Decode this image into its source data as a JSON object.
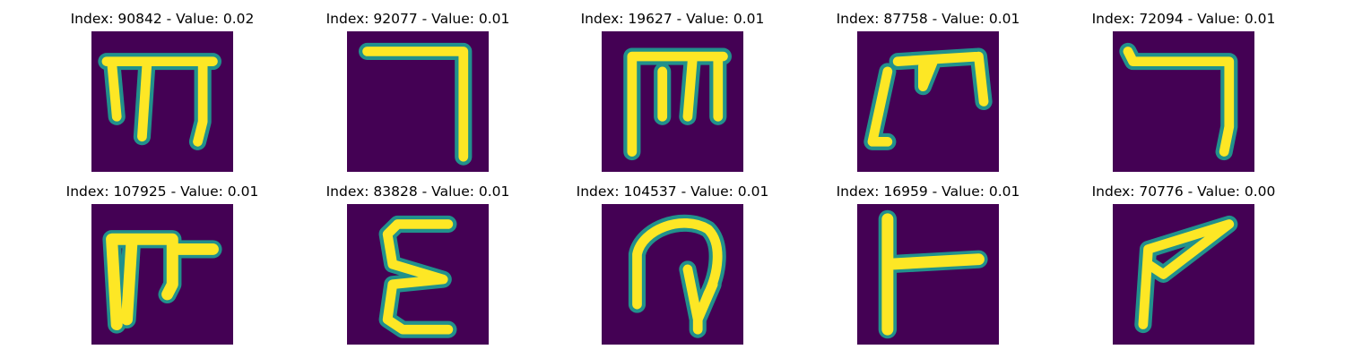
{
  "figure": {
    "colormap": "viridis",
    "colors": {
      "background": "#440154",
      "stroke_edge": "#21918c",
      "stroke_core": "#fde725"
    },
    "panels": [
      {
        "title": "Index: 90842 - Value: 0.02"
      },
      {
        "title": "Index: 92077 - Value: 0.01"
      },
      {
        "title": "Index: 19627 - Value: 0.01"
      },
      {
        "title": "Index: 87758 - Value: 0.01"
      },
      {
        "title": "Index: 72094 - Value: 0.01"
      },
      {
        "title": "Index: 107925 - Value: 0.01"
      },
      {
        "title": "Index: 83828 - Value: 0.01"
      },
      {
        "title": "Index: 104537 - Value: 0.01"
      },
      {
        "title": "Index: 16959 - Value: 0.01"
      },
      {
        "title": "Index: 70776 - Value: 0.00"
      }
    ]
  }
}
